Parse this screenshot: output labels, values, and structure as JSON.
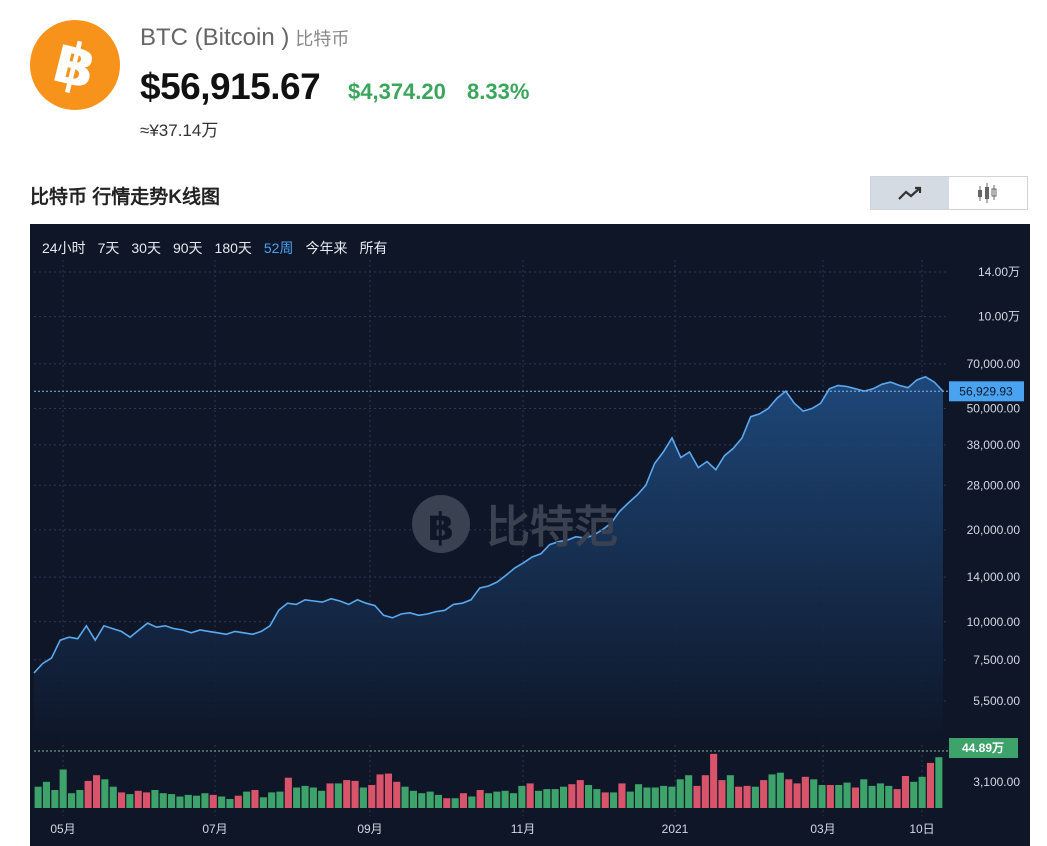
{
  "header": {
    "logo_icon": "bitcoin-logo-icon",
    "coin_name": "BTC (Bitcoin )",
    "coin_name_cn": "比特币",
    "price": "$56,915.67",
    "change_abs": "$4,374.20",
    "change_pct": "8.33%",
    "cny_price": "≈¥37.14万",
    "up_color": "#3ba55c"
  },
  "section": {
    "title": "比特币 行情走势K线图",
    "toggle": [
      {
        "icon": "line-chart-icon",
        "active": true
      },
      {
        "icon": "candlestick-icon",
        "active": false
      }
    ]
  },
  "tabs": [
    {
      "label": "24小时",
      "active": false
    },
    {
      "label": "7天",
      "active": false
    },
    {
      "label": "30天",
      "active": false
    },
    {
      "label": "90天",
      "active": false
    },
    {
      "label": "180天",
      "active": false
    },
    {
      "label": "52周",
      "active": true
    },
    {
      "label": "今年来",
      "active": false
    },
    {
      "label": "所有",
      "active": false
    }
  ],
  "watermark": {
    "text": "比特范",
    "icon": "bitcoin-watermark-icon"
  },
  "chart_data": {
    "type": "area",
    "scale": "log",
    "x_tick_labels": [
      "05月",
      "07月",
      "09月",
      "11月",
      "2021",
      "03月",
      "10日"
    ],
    "y_tick_labels": [
      "14.00万",
      "10.00万",
      "70,000.00",
      "50,000.00",
      "38,000.00",
      "28,000.00",
      "20,000.00",
      "14,000.00",
      "10,000.00",
      "7,500.00",
      "5,500.00",
      "3,100.00"
    ],
    "y_ticks": [
      140000,
      100000,
      70000,
      50000,
      38000,
      28000,
      20000,
      14000,
      10000,
      7500,
      5500,
      3100
    ],
    "current_price_label": "56,929.93",
    "current_price": 56929.93,
    "volume_label": "44.89万",
    "price_series": [
      6800,
      7300,
      7600,
      8700,
      8900,
      8800,
      9700,
      8700,
      9700,
      9500,
      9300,
      8900,
      9400,
      9900,
      9600,
      9700,
      9500,
      9400,
      9200,
      9400,
      9300,
      9200,
      9100,
      9300,
      9200,
      9100,
      9300,
      9700,
      10900,
      11500,
      11400,
      11800,
      11700,
      11600,
      11900,
      11700,
      11400,
      11800,
      11500,
      11300,
      10500,
      10300,
      10600,
      10700,
      10500,
      10600,
      10800,
      10900,
      11400,
      11500,
      11800,
      12900,
      13100,
      13500,
      14200,
      15000,
      15600,
      16300,
      16700,
      17900,
      18300,
      18500,
      19000,
      18800,
      19200,
      20000,
      21000,
      23000,
      24500,
      26000,
      28000,
      33000,
      36000,
      40000,
      34500,
      36000,
      32000,
      33500,
      31500,
      35000,
      37000,
      40000,
      47000,
      48000,
      50000,
      54000,
      57000,
      52000,
      49000,
      50000,
      52000,
      58000,
      59500,
      59000,
      58000,
      57000,
      58000,
      60000,
      61000,
      59500,
      58500,
      62000,
      63500,
      61000,
      56929.93
    ],
    "volume_series": [
      {
        "v": 26,
        "up": true
      },
      {
        "v": 32,
        "up": true
      },
      {
        "v": 22,
        "up": true
      },
      {
        "v": 47,
        "up": true
      },
      {
        "v": 18,
        "up": true
      },
      {
        "v": 22,
        "up": true
      },
      {
        "v": 33,
        "up": false
      },
      {
        "v": 40,
        "up": false
      },
      {
        "v": 35,
        "up": true
      },
      {
        "v": 26,
        "up": true
      },
      {
        "v": 19,
        "up": false
      },
      {
        "v": 17,
        "up": true
      },
      {
        "v": 21,
        "up": false
      },
      {
        "v": 19,
        "up": false
      },
      {
        "v": 22,
        "up": true
      },
      {
        "v": 18,
        "up": true
      },
      {
        "v": 17,
        "up": true
      },
      {
        "v": 14,
        "up": true
      },
      {
        "v": 16,
        "up": true
      },
      {
        "v": 15,
        "up": true
      },
      {
        "v": 18,
        "up": true
      },
      {
        "v": 16,
        "up": false
      },
      {
        "v": 14,
        "up": true
      },
      {
        "v": 11,
        "up": true
      },
      {
        "v": 15,
        "up": false
      },
      {
        "v": 20,
        "up": true
      },
      {
        "v": 22,
        "up": false
      },
      {
        "v": 13,
        "up": true
      },
      {
        "v": 19,
        "up": true
      },
      {
        "v": 20,
        "up": true
      },
      {
        "v": 37,
        "up": false
      },
      {
        "v": 25,
        "up": true
      },
      {
        "v": 27,
        "up": true
      },
      {
        "v": 25,
        "up": true
      },
      {
        "v": 21,
        "up": true
      },
      {
        "v": 30,
        "up": false
      },
      {
        "v": 30,
        "up": true
      },
      {
        "v": 34,
        "up": false
      },
      {
        "v": 33,
        "up": false
      },
      {
        "v": 25,
        "up": true
      },
      {
        "v": 28,
        "up": false
      },
      {
        "v": 41,
        "up": false
      },
      {
        "v": 42,
        "up": false
      },
      {
        "v": 32,
        "up": false
      },
      {
        "v": 26,
        "up": true
      },
      {
        "v": 21,
        "up": true
      },
      {
        "v": 18,
        "up": true
      },
      {
        "v": 20,
        "up": true
      },
      {
        "v": 16,
        "up": true
      },
      {
        "v": 12,
        "up": false
      },
      {
        "v": 12,
        "up": true
      },
      {
        "v": 18,
        "up": false
      },
      {
        "v": 14,
        "up": true
      },
      {
        "v": 22,
        "up": false
      },
      {
        "v": 18,
        "up": true
      },
      {
        "v": 20,
        "up": true
      },
      {
        "v": 21,
        "up": true
      },
      {
        "v": 18,
        "up": true
      },
      {
        "v": 27,
        "up": true
      },
      {
        "v": 30,
        "up": false
      },
      {
        "v": 21,
        "up": true
      },
      {
        "v": 23,
        "up": true
      },
      {
        "v": 23,
        "up": true
      },
      {
        "v": 26,
        "up": true
      },
      {
        "v": 29,
        "up": false
      },
      {
        "v": 34,
        "up": false
      },
      {
        "v": 28,
        "up": true
      },
      {
        "v": 23,
        "up": true
      },
      {
        "v": 19,
        "up": false
      },
      {
        "v": 19,
        "up": true
      },
      {
        "v": 30,
        "up": false
      },
      {
        "v": 20,
        "up": true
      },
      {
        "v": 29,
        "up": true
      },
      {
        "v": 25,
        "up": true
      },
      {
        "v": 25,
        "up": true
      },
      {
        "v": 27,
        "up": true
      },
      {
        "v": 26,
        "up": true
      },
      {
        "v": 35,
        "up": true
      },
      {
        "v": 40,
        "up": true
      },
      {
        "v": 27,
        "up": false
      },
      {
        "v": 40,
        "up": false
      },
      {
        "v": 66,
        "up": false
      },
      {
        "v": 34,
        "up": false
      },
      {
        "v": 40,
        "up": true
      },
      {
        "v": 26,
        "up": false
      },
      {
        "v": 27,
        "up": false
      },
      {
        "v": 26,
        "up": true
      },
      {
        "v": 34,
        "up": false
      },
      {
        "v": 41,
        "up": true
      },
      {
        "v": 43,
        "up": true
      },
      {
        "v": 35,
        "up": false
      },
      {
        "v": 30,
        "up": false
      },
      {
        "v": 38,
        "up": false
      },
      {
        "v": 35,
        "up": true
      },
      {
        "v": 28,
        "up": true
      },
      {
        "v": 28,
        "up": false
      },
      {
        "v": 28,
        "up": true
      },
      {
        "v": 31,
        "up": true
      },
      {
        "v": 25,
        "up": false
      },
      {
        "v": 35,
        "up": true
      },
      {
        "v": 27,
        "up": true
      },
      {
        "v": 30,
        "up": true
      },
      {
        "v": 27,
        "up": true
      },
      {
        "v": 23,
        "up": false
      },
      {
        "v": 39,
        "up": false
      },
      {
        "v": 32,
        "up": true
      },
      {
        "v": 38,
        "up": true
      },
      {
        "v": 55,
        "up": false
      },
      {
        "v": 62,
        "up": true
      }
    ],
    "colors": {
      "line": "#5aa9f0",
      "area_top": "#1f4a7e",
      "area_bottom": "#0e1628",
      "volume_up": "#3ea36b",
      "volume_down": "#d9546a",
      "price_badge": "#4aa3f0",
      "volume_badge": "#3ea36b"
    }
  }
}
